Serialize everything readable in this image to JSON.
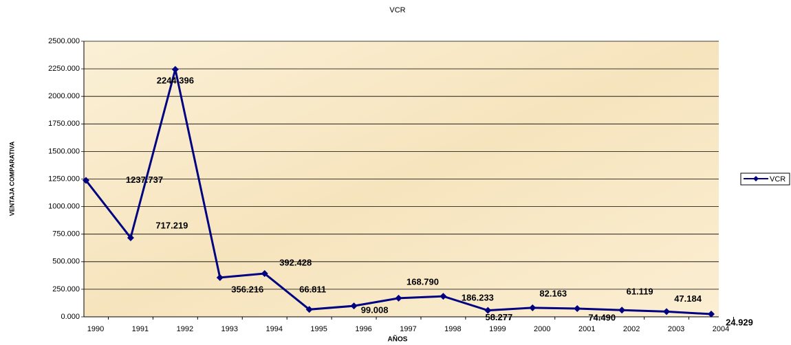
{
  "chart_data": {
    "type": "line",
    "title": "VCR",
    "x_label": "AÑOS",
    "y_label": "VENTAJA COMPARATIVA",
    "categories": [
      "1990",
      "1991",
      "1992",
      "1993",
      "1994",
      "1995",
      "1996",
      "1997",
      "1998",
      "1999",
      "2000",
      "2001",
      "2002",
      "2003",
      "2004"
    ],
    "series": [
      {
        "name": "VCR",
        "color": "#000080",
        "values": [
          1237.737,
          717.219,
          2244.396,
          356.216,
          392.428,
          66.811,
          99.008,
          168.79,
          186.233,
          58.277,
          82.163,
          74.49,
          61.119,
          47.184,
          24.929
        ],
        "value_labels": [
          "1237.737",
          "717.219",
          "2244.396",
          "356.216",
          "392.428",
          "66.811",
          "99.008",
          "168.790",
          "186.233",
          "58.277",
          "82.163",
          "74.490",
          "61.119",
          "47.184",
          "24.929"
        ]
      }
    ],
    "ylim": [
      0,
      2500
    ],
    "yticks": [
      {
        "value": 0,
        "label": "0.000"
      },
      {
        "value": 250,
        "label": "250.000"
      },
      {
        "value": 500,
        "label": "500.000"
      },
      {
        "value": 750,
        "label": "750.000"
      },
      {
        "value": 1000,
        "label": "1000.000"
      },
      {
        "value": 1250,
        "label": "1250.000"
      },
      {
        "value": 1500,
        "label": "1500.000"
      },
      {
        "value": 1750,
        "label": "1750.000"
      },
      {
        "value": 2000,
        "label": "2000.000"
      },
      {
        "value": 2250,
        "label": "2250.000"
      },
      {
        "value": 2500,
        "label": "2500.000"
      }
    ],
    "grid": true,
    "legend": "right"
  }
}
